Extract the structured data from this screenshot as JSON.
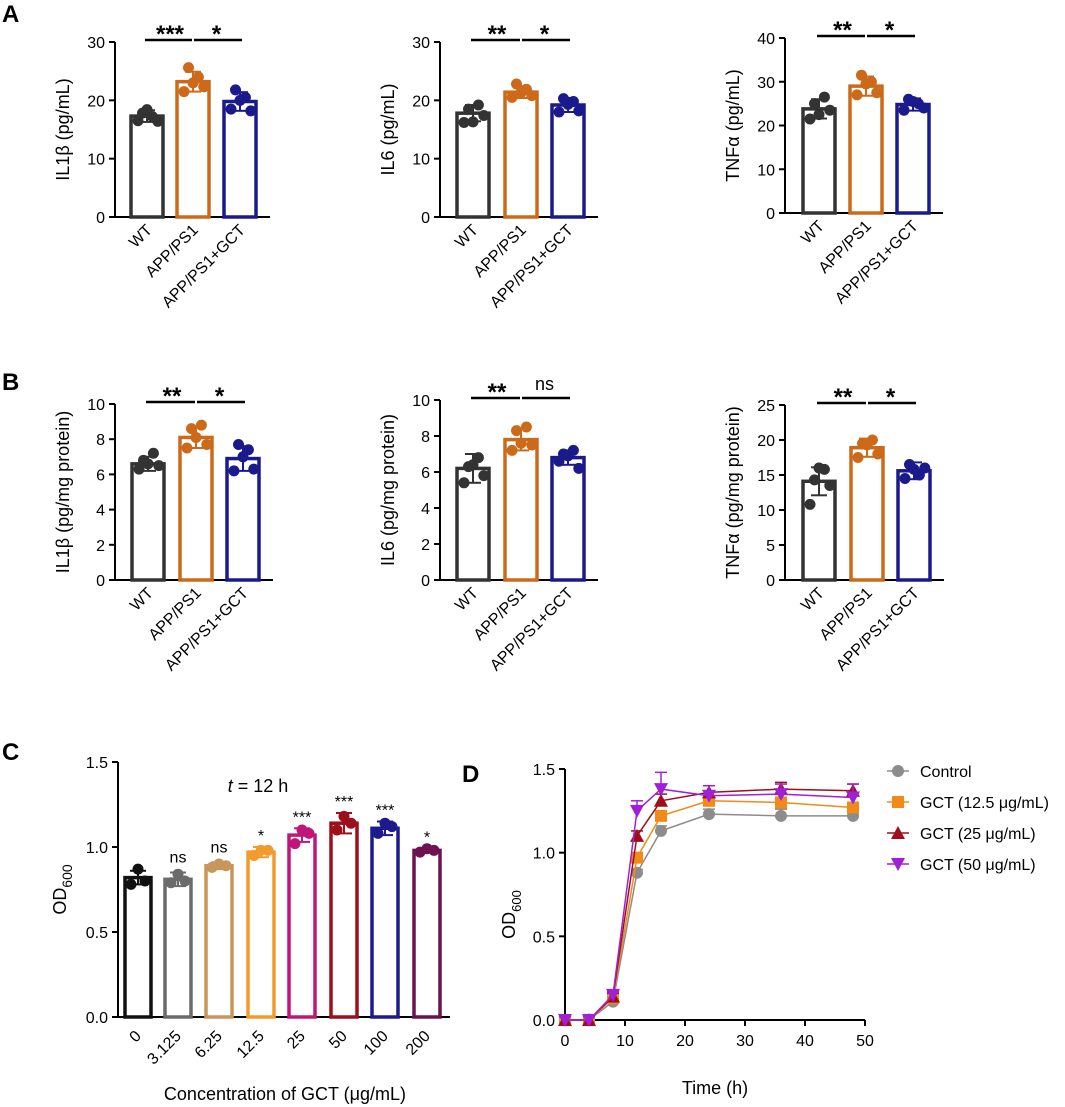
{
  "panel_labels": [
    "A",
    "B",
    "C",
    "D"
  ],
  "colors": {
    "WT": "#333333",
    "APP/PS1": "#cc6a1a",
    "APP/PS1+GCT": "#1a1a8c",
    "axis": "#000000",
    "sig_line": "#000000"
  },
  "chart_data": [
    {
      "id": "A1",
      "panel": "A",
      "type": "bar",
      "ylabel": "IL1β (pg/mL)",
      "ylim": [
        0,
        30
      ],
      "yticks": [
        0,
        10,
        20,
        30
      ],
      "categories": [
        "WT",
        "APP/PS1",
        "APP/PS1+GCT"
      ],
      "values": [
        17.3,
        23.2,
        19.8
      ],
      "errors": [
        1.0,
        1.7,
        1.6
      ],
      "points": [
        [
          16.5,
          17.8,
          17.2,
          16.4,
          18.4
        ],
        [
          21.5,
          25.6,
          24.0,
          22.3,
          23.0
        ],
        [
          18.5,
          21.8,
          20.5,
          18.2,
          20.0
        ]
      ],
      "significance": [
        {
          "from": 0,
          "to": 1,
          "label": "***"
        },
        {
          "from": 1,
          "to": 2,
          "label": "*"
        }
      ]
    },
    {
      "id": "A2",
      "panel": "A",
      "type": "bar",
      "ylabel": "IL6 (pg/mL)",
      "ylim": [
        0,
        30
      ],
      "yticks": [
        0,
        10,
        20,
        30
      ],
      "categories": [
        "WT",
        "APP/PS1",
        "APP/PS1+GCT"
      ],
      "values": [
        17.8,
        21.4,
        19.2
      ],
      "errors": [
        1.4,
        1.0,
        1.2
      ],
      "points": [
        [
          16.2,
          18.5,
          19.2,
          17.4,
          16.3
        ],
        [
          20.5,
          22.8,
          21.9,
          20.8,
          21.3
        ],
        [
          18.0,
          20.3,
          19.8,
          18.2,
          19.3
        ]
      ],
      "significance": [
        {
          "from": 0,
          "to": 1,
          "label": "**"
        },
        {
          "from": 1,
          "to": 2,
          "label": "*"
        }
      ]
    },
    {
      "id": "A3",
      "panel": "A",
      "type": "bar",
      "ylabel": "TNFα (pg/mL)",
      "ylim": [
        0,
        40
      ],
      "yticks": [
        0,
        10,
        20,
        30,
        40
      ],
      "categories": [
        "WT",
        "APP/PS1",
        "APP/PS1+GCT"
      ],
      "values": [
        23.8,
        29.0,
        24.8
      ],
      "errors": [
        2.2,
        2.2,
        1.4
      ],
      "points": [
        [
          21.5,
          25.0,
          26.5,
          23.5,
          22.5
        ],
        [
          27.0,
          31.5,
          30.0,
          27.5,
          29.5
        ],
        [
          23.5,
          26.0,
          25.0,
          24.0,
          25.5
        ]
      ],
      "significance": [
        {
          "from": 0,
          "to": 1,
          "label": "**"
        },
        {
          "from": 1,
          "to": 2,
          "label": "*"
        }
      ]
    },
    {
      "id": "B1",
      "panel": "B",
      "type": "bar",
      "ylabel": "IL1β (pg/mg protein)",
      "ylim": [
        0,
        10
      ],
      "yticks": [
        0,
        2,
        4,
        6,
        8,
        10
      ],
      "categories": [
        "WT",
        "APP/PS1",
        "APP/PS1+GCT"
      ],
      "values": [
        6.6,
        8.1,
        6.9
      ],
      "errors": [
        0.4,
        0.6,
        0.7
      ],
      "points": [
        [
          6.3,
          6.8,
          7.2,
          6.5,
          6.6
        ],
        [
          7.5,
          8.6,
          8.8,
          7.7,
          8.1
        ],
        [
          6.2,
          7.7,
          7.4,
          6.3,
          7.0
        ]
      ],
      "significance": [
        {
          "from": 0,
          "to": 1,
          "label": "**"
        },
        {
          "from": 1,
          "to": 2,
          "label": "*"
        }
      ]
    },
    {
      "id": "B2",
      "panel": "B",
      "type": "bar",
      "ylabel": "IL6 (pg/mg protein)",
      "ylim": [
        0,
        10
      ],
      "yticks": [
        0,
        2,
        4,
        6,
        8,
        10
      ],
      "categories": [
        "WT",
        "APP/PS1",
        "APP/PS1+GCT"
      ],
      "values": [
        6.2,
        7.8,
        6.8
      ],
      "errors": [
        0.8,
        0.6,
        0.4
      ],
      "points": [
        [
          5.4,
          6.3,
          6.8,
          5.8,
          6.4
        ],
        [
          7.2,
          8.3,
          8.5,
          7.5,
          7.6
        ],
        [
          6.6,
          7.0,
          7.2,
          6.2,
          6.9
        ]
      ],
      "significance": [
        {
          "from": 0,
          "to": 1,
          "label": "**"
        },
        {
          "from": 1,
          "to": 2,
          "label": "ns"
        }
      ]
    },
    {
      "id": "B3",
      "panel": "B",
      "type": "bar",
      "ylabel": "TNFα (pg/mg protein)",
      "ylim": [
        0,
        25
      ],
      "yticks": [
        0,
        5,
        10,
        15,
        20,
        25
      ],
      "categories": [
        "WT",
        "APP/PS1",
        "APP/PS1+GCT"
      ],
      "values": [
        14.1,
        18.9,
        15.6
      ],
      "errors": [
        2.0,
        1.3,
        1.2
      ],
      "points": [
        [
          10.8,
          14.3,
          15.8,
          13.5,
          16.0
        ],
        [
          17.5,
          19.5,
          20.0,
          18.0,
          19.3
        ],
        [
          14.5,
          16.5,
          15.0,
          16.0,
          15.8
        ]
      ],
      "significance": [
        {
          "from": 0,
          "to": 1,
          "label": "**"
        },
        {
          "from": 1,
          "to": 2,
          "label": "*"
        }
      ]
    },
    {
      "id": "C",
      "panel": "C",
      "type": "bar",
      "title_italic": "t",
      "title_rest": " = 12 h",
      "ylabel": "OD",
      "ylabel_sub": "600",
      "xlabel": "Concentration of GCT (μg/mL)",
      "ylim": [
        0,
        1.5
      ],
      "yticks": [
        "0.0",
        "0.5",
        "1.0",
        "1.5"
      ],
      "categories": [
        "0",
        "3.125",
        "6.25",
        "12.5",
        "25",
        "50",
        "100",
        "200"
      ],
      "values": [
        0.82,
        0.81,
        0.89,
        0.97,
        1.07,
        1.14,
        1.11,
        0.98
      ],
      "errors": [
        0.04,
        0.04,
        0.02,
        0.03,
        0.04,
        0.06,
        0.04,
        0.01
      ],
      "points": [
        [
          0.78,
          0.87,
          0.8
        ],
        [
          0.79,
          0.84,
          0.8
        ],
        [
          0.88,
          0.9,
          0.89
        ],
        [
          0.95,
          0.98,
          0.98
        ],
        [
          1.02,
          1.1,
          1.08
        ],
        [
          1.1,
          1.18,
          1.14
        ],
        [
          1.08,
          1.14,
          1.12
        ],
        [
          0.97,
          0.99,
          0.98
        ]
      ],
      "colors": [
        "#111111",
        "#6b6b6b",
        "#c8955a",
        "#f39a2c",
        "#c0167a",
        "#9e0f1c",
        "#1d1a8e",
        "#6e1150"
      ],
      "labels": [
        "",
        "ns",
        "ns",
        "*",
        "***",
        "***",
        "***",
        "*"
      ]
    },
    {
      "id": "D",
      "panel": "D",
      "type": "line",
      "xlabel": "Time (h)",
      "ylabel": "OD",
      "ylabel_sub": "600",
      "xlim": [
        0,
        50
      ],
      "ylim": [
        0,
        1.5
      ],
      "xticks": [
        0,
        10,
        20,
        30,
        40,
        50
      ],
      "yticks": [
        "0.0",
        "0.5",
        "1.0",
        "1.5"
      ],
      "x": [
        0,
        4,
        8,
        12,
        16,
        24,
        36,
        48
      ],
      "series": [
        {
          "name": "Control",
          "marker": "circle",
          "color": "#8c8c8c",
          "values": [
            0.0,
            0.0,
            0.11,
            0.88,
            1.13,
            1.23,
            1.22,
            1.22
          ],
          "errors": [
            0.02,
            0.02,
            0.02,
            0.02,
            0.03,
            0.03,
            0.04,
            0.04
          ]
        },
        {
          "name": "GCT (12.5 μg/mL)",
          "marker": "square",
          "color": "#f28a1a",
          "values": [
            0.0,
            0.0,
            0.13,
            0.97,
            1.22,
            1.31,
            1.3,
            1.27
          ],
          "errors": [
            0.02,
            0.02,
            0.02,
            0.03,
            0.03,
            0.03,
            0.03,
            0.03
          ]
        },
        {
          "name": "GCT (25 μg/mL)",
          "marker": "triangle-up",
          "color": "#9e0f1c",
          "values": [
            0.0,
            0.0,
            0.14,
            1.1,
            1.31,
            1.36,
            1.38,
            1.37
          ],
          "errors": [
            0.02,
            0.02,
            0.02,
            0.03,
            0.04,
            0.04,
            0.04,
            0.04
          ]
        },
        {
          "name": "GCT (50 μg/mL)",
          "marker": "triangle-down",
          "color": "#a020d8",
          "values": [
            0.0,
            0.0,
            0.15,
            1.25,
            1.38,
            1.34,
            1.35,
            1.33
          ],
          "errors": [
            0.02,
            0.02,
            0.02,
            0.06,
            0.1,
            0.06,
            0.06,
            0.08
          ]
        }
      ]
    }
  ]
}
